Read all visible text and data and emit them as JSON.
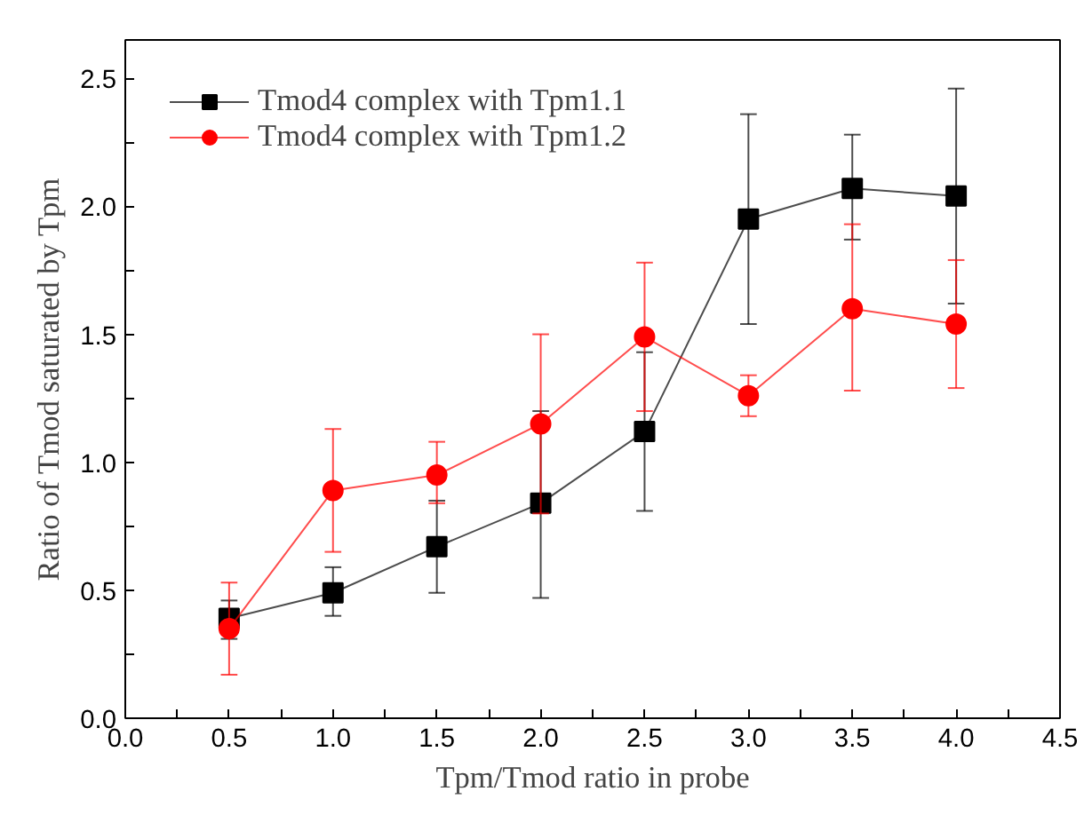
{
  "chart_data": {
    "type": "line",
    "xlabel": "Tpm/Tmod ratio in probe",
    "ylabel": "Ratio of Tmod saturated by Tpm",
    "x": [
      0.5,
      1.0,
      1.5,
      2.0,
      2.5,
      3.0,
      3.5,
      4.0
    ],
    "series": [
      {
        "name": "Tmod4 complex with Tpm1.1",
        "color": "#000000",
        "marker": "square",
        "values": [
          0.39,
          0.49,
          0.67,
          0.84,
          1.12,
          1.95,
          2.07,
          2.04
        ],
        "errors": [
          [
            0.31,
            0.46
          ],
          [
            0.4,
            0.59
          ],
          [
            0.49,
            0.85
          ],
          [
            0.47,
            1.2
          ],
          [
            0.81,
            1.43
          ],
          [
            1.54,
            2.36
          ],
          [
            1.87,
            2.28
          ],
          [
            1.62,
            2.46
          ]
        ]
      },
      {
        "name": "Tmod4 complex with Tpm1.2",
        "color": "#ff0000",
        "marker": "circle",
        "values": [
          0.35,
          0.89,
          0.95,
          1.15,
          1.49,
          1.26,
          1.6,
          1.54
        ],
        "errors": [
          [
            0.17,
            0.53
          ],
          [
            0.65,
            1.13
          ],
          [
            0.84,
            1.08
          ],
          [
            0.8,
            1.5
          ],
          [
            1.2,
            1.78
          ],
          [
            1.18,
            1.34
          ],
          [
            1.28,
            1.93
          ],
          [
            1.29,
            1.79
          ]
        ]
      }
    ],
    "xlim": [
      0.0,
      4.5
    ],
    "ylim": [
      0.0,
      2.65
    ],
    "xticks": [
      {
        "value": 0,
        "label": "0.0"
      },
      {
        "value": 0.25,
        "label": null
      },
      0.5,
      {
        "value": 0.75,
        "label": null
      },
      {
        "value": 1,
        "label": "1.0"
      },
      {
        "value": 1.25,
        "label": null
      },
      1.5,
      {
        "value": 1.75,
        "label": null
      },
      {
        "value": 2,
        "label": "2.0"
      },
      {
        "value": 2.25,
        "label": null
      },
      2.5,
      {
        "value": 2.75,
        "label": null
      },
      {
        "value": 3,
        "label": "3.0"
      },
      {
        "value": 3.25,
        "label": null
      },
      3.5,
      {
        "value": 3.75,
        "label": null
      },
      {
        "value": 4,
        "label": "4.0"
      },
      {
        "value": 4.25,
        "label": null
      },
      4.5
    ],
    "yticks": [
      {
        "value": 0,
        "label": "0.0"
      },
      {
        "value": 0.25,
        "label": null
      },
      0.5,
      {
        "value": 0.75,
        "label": null
      },
      {
        "value": 1,
        "label": "1.0"
      },
      {
        "value": 1.25,
        "label": null
      },
      1.5,
      {
        "value": 1.75,
        "label": null
      },
      {
        "value": 2,
        "label": "2.0"
      },
      {
        "value": 2.25,
        "label": null
      },
      2.5
    ],
    "grid": false,
    "legend": "top left",
    "line_style": "solid"
  }
}
